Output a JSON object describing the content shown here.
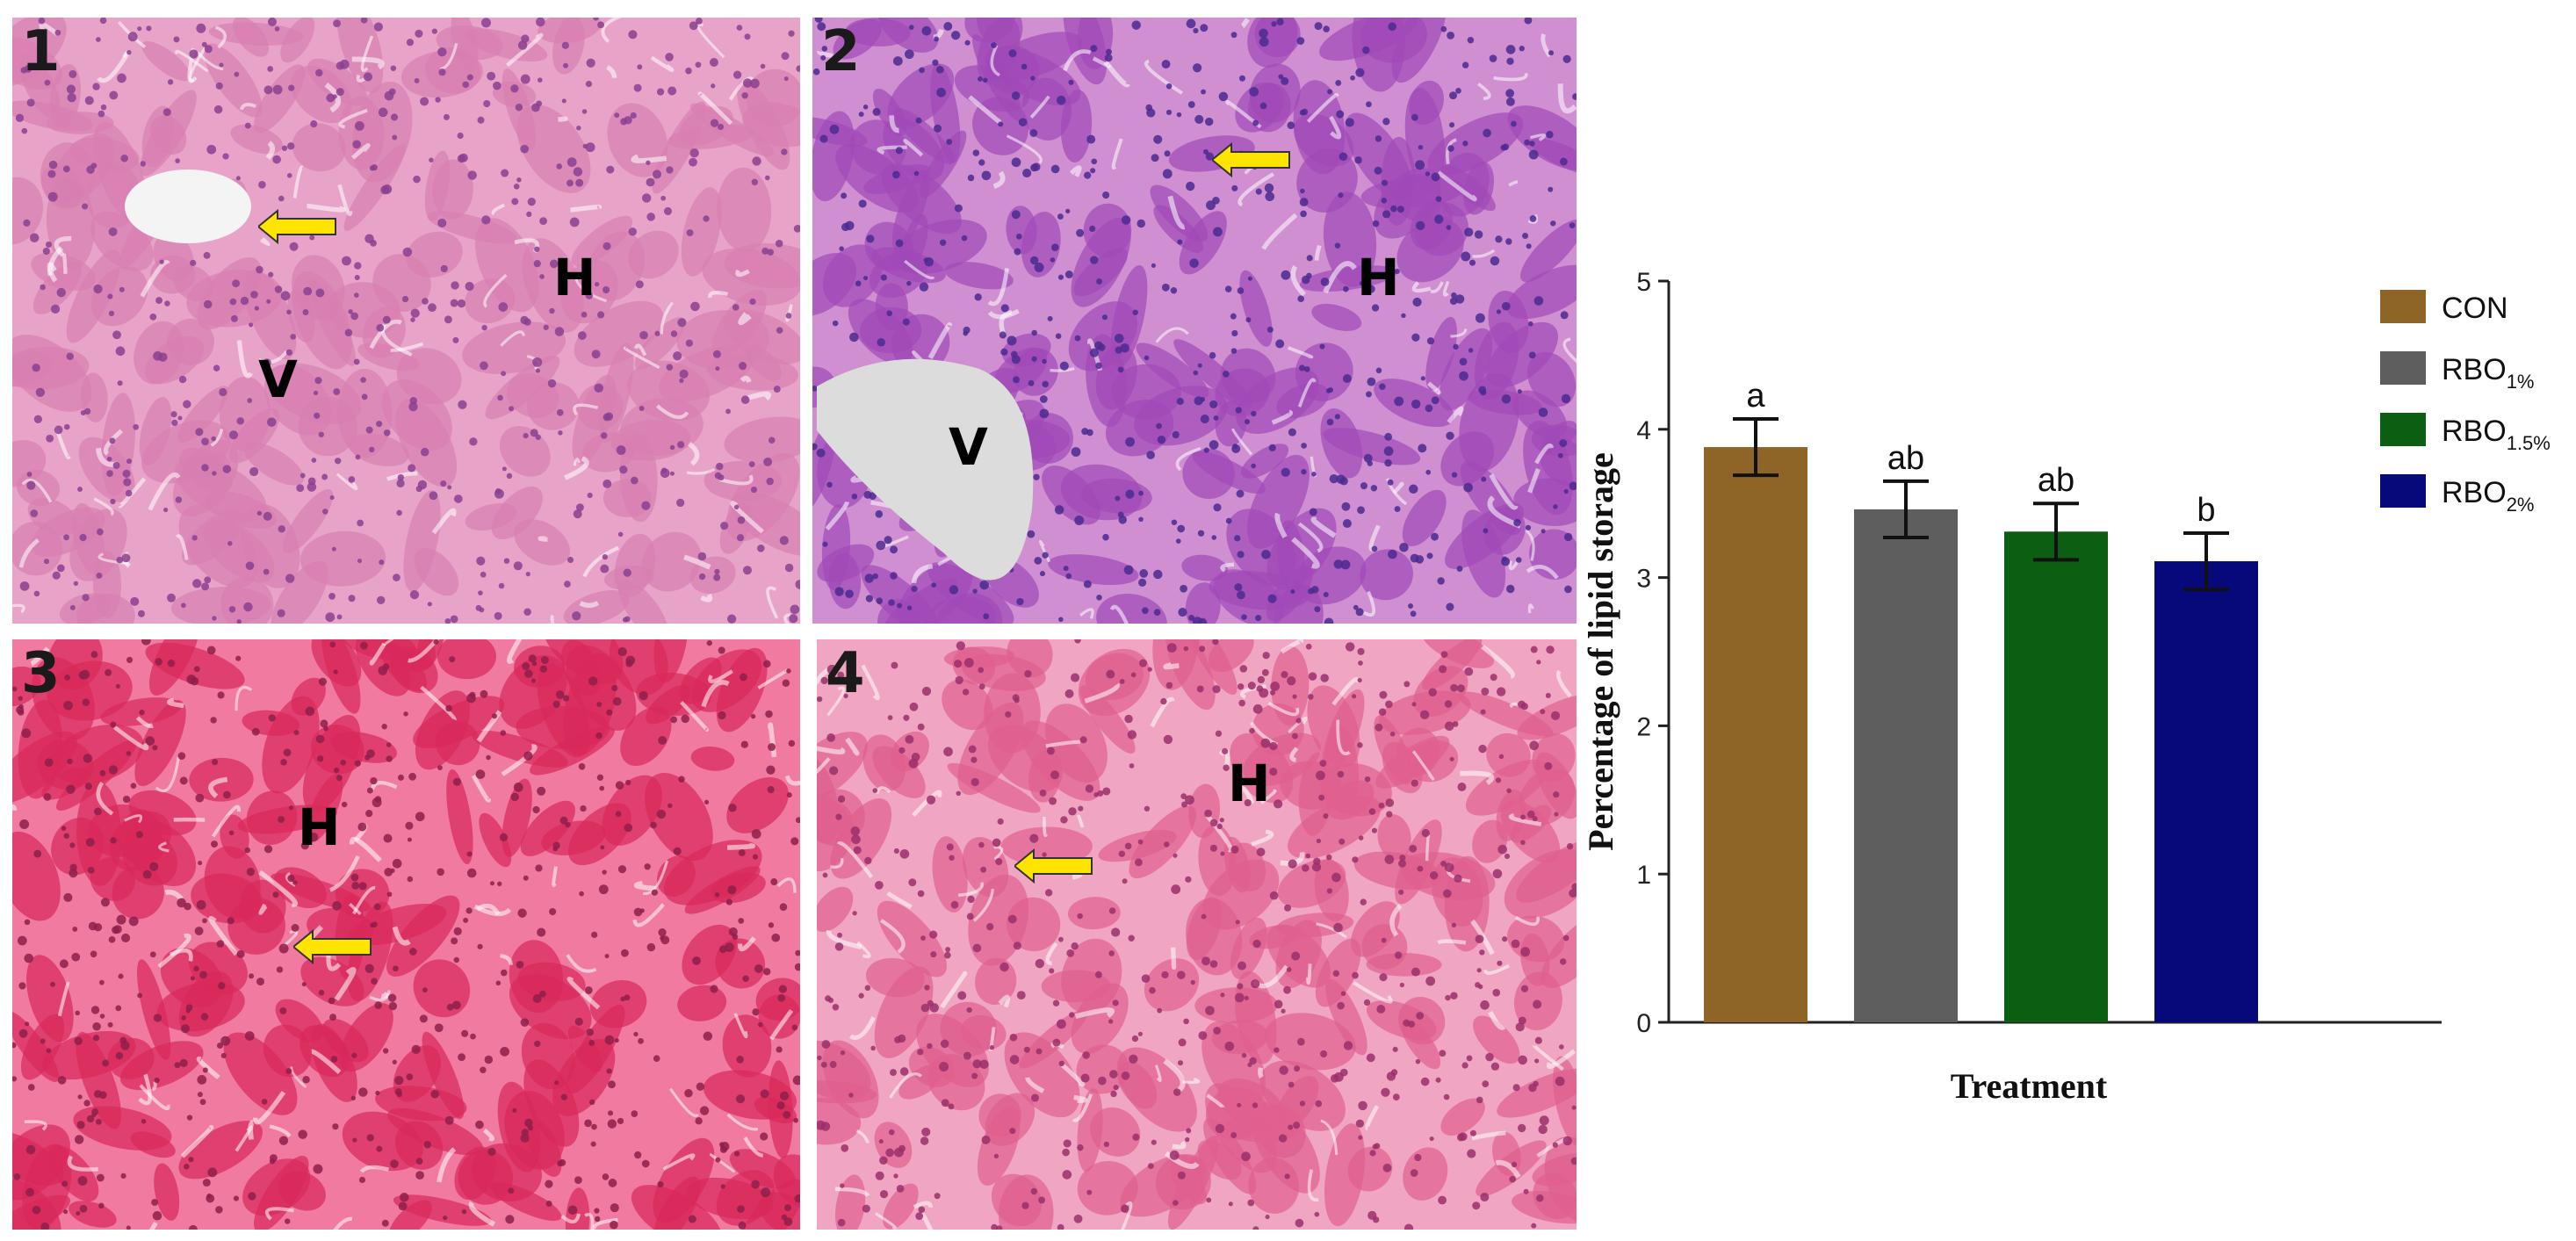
{
  "panels": [
    {
      "number": "1",
      "labels": [
        "H",
        "V"
      ],
      "palette": {
        "base": "#e8a4c8",
        "cell": "#d77fb0",
        "nucleus": "#8a3f8f",
        "vessel": "#f4f4f4"
      }
    },
    {
      "number": "2",
      "labels": [
        "H",
        "V"
      ],
      "palette": {
        "base": "#cf8fd0",
        "cell": "#9f48b8",
        "nucleus": "#4b2a8f",
        "vessel": "#dcdcdc"
      }
    },
    {
      "number": "3",
      "labels": [
        "H"
      ],
      "palette": {
        "base": "#f07aa0",
        "cell": "#d8285a",
        "nucleus": "#8e1f4a",
        "vessel": "#ffffff"
      }
    },
    {
      "number": "4",
      "labels": [
        "H"
      ],
      "palette": {
        "base": "#f0a6c2",
        "cell": "#e0608e",
        "nucleus": "#9a2f6a",
        "vessel": "#ffffff"
      }
    }
  ],
  "arrow_color": "#ffe400",
  "chart_data": {
    "type": "bar",
    "categories": [
      "CON",
      "RBO1%",
      "RBO1.5%",
      "RBO2%"
    ],
    "values": [
      3.88,
      3.46,
      3.31,
      3.11
    ],
    "errors": [
      0.19,
      0.19,
      0.19,
      0.19
    ],
    "data_labels": [
      "a",
      "ab",
      "ab",
      "b"
    ],
    "colors": [
      "#8e6427",
      "#5e5e5e",
      "#0b5e12",
      "#07097a"
    ],
    "xlabel": "Treatment",
    "ylabel": "Percentage of lipid storage",
    "ylim": [
      0,
      5
    ],
    "yticks": [
      0,
      1,
      2,
      3,
      4,
      5
    ],
    "legend": [
      {
        "main": "CON",
        "sub": ""
      },
      {
        "main": "RBO",
        "sub": "1%"
      },
      {
        "main": "RBO",
        "sub": "1.5%"
      },
      {
        "main": "RBO",
        "sub": "2%"
      }
    ],
    "legend_position": "right",
    "grid": false
  }
}
